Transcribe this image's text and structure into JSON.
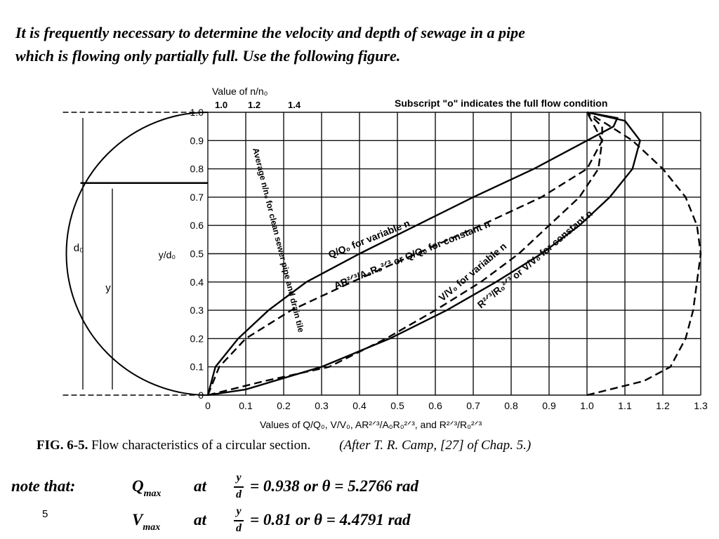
{
  "intro": {
    "line1": "It is frequently necessary to determine the velocity and depth of sewage in a pipe",
    "line2": "which is flowing only partially full.  Use the following figure."
  },
  "chart_data": {
    "type": "line",
    "top_axis_title": "Value of n/n₀",
    "top_ticks": [
      "1.0",
      "1.2",
      "1.4"
    ],
    "subscript_note": "Subscript \"o\" indicates the full flow condition",
    "ylabel": "y/d₀",
    "xlabel": "Values of Q/Q₀, V/V₀, AR²ᐟ³/A₀R₀²ᐟ³, and R²ᐟ³/R₀²ᐟ³",
    "x_ticks": [
      "0",
      "0.1",
      "0.2",
      "0.3",
      "0.4",
      "0.5",
      "0.6",
      "0.7",
      "0.8",
      "0.9",
      "1.0",
      "1.1",
      "1.2",
      "1.3"
    ],
    "y_ticks": [
      "0",
      "0.1",
      "0.2",
      "0.3",
      "0.4",
      "0.5",
      "0.6",
      "0.7",
      "0.8",
      "0.9",
      "1.0"
    ],
    "xlim": [
      0,
      1.3
    ],
    "ylim": [
      0,
      1.0
    ],
    "grid": true,
    "pipe_labels": {
      "diameter": "d₀",
      "depth": "y"
    },
    "series": [
      {
        "name": "Average n/n₀ for clean sewer pipe and drain tile",
        "style": "dashed",
        "x": [
          1.0,
          1.15,
          1.22,
          1.26,
          1.28,
          1.29,
          1.3,
          1.29,
          1.26,
          1.2,
          1.12,
          1.05,
          1.0
        ],
        "y": [
          0.0,
          0.05,
          0.1,
          0.2,
          0.3,
          0.4,
          0.5,
          0.6,
          0.7,
          0.8,
          0.9,
          0.96,
          1.0
        ]
      },
      {
        "name": "Q/Q₀ for variable n",
        "style": "dashed",
        "x": [
          0,
          0.03,
          0.1,
          0.22,
          0.38,
          0.55,
          0.72,
          0.88,
          1.0,
          1.04,
          1.04,
          1.0
        ],
        "y": [
          0,
          0.1,
          0.2,
          0.3,
          0.4,
          0.5,
          0.6,
          0.7,
          0.8,
          0.9,
          0.95,
          1.0
        ]
      },
      {
        "name": "AR²ᐟ³/A₀R₀²ᐟ³ or Q/Q₀ for constant n",
        "style": "solid",
        "x": [
          0,
          0.02,
          0.08,
          0.16,
          0.26,
          0.4,
          0.55,
          0.7,
          0.86,
          1.0,
          1.07,
          1.08,
          1.0
        ],
        "y": [
          0,
          0.1,
          0.2,
          0.3,
          0.4,
          0.5,
          0.6,
          0.7,
          0.8,
          0.9,
          0.95,
          0.98,
          1.0
        ]
      },
      {
        "name": "V/V₀ for variable n",
        "style": "dashed",
        "x": [
          0,
          0.15,
          0.32,
          0.47,
          0.6,
          0.72,
          0.82,
          0.9,
          0.98,
          1.03,
          1.04,
          1.0
        ],
        "y": [
          0,
          0.05,
          0.1,
          0.2,
          0.3,
          0.4,
          0.5,
          0.6,
          0.7,
          0.8,
          0.9,
          1.0
        ]
      },
      {
        "name": "R²ᐟ³/R₀²ᐟ³ or V/V₀ for constant n",
        "style": "solid",
        "x": [
          0,
          0.1,
          0.3,
          0.48,
          0.63,
          0.76,
          0.88,
          0.98,
          1.06,
          1.12,
          1.14,
          1.1,
          1.0
        ],
        "y": [
          0,
          0.02,
          0.1,
          0.2,
          0.3,
          0.4,
          0.5,
          0.6,
          0.7,
          0.8,
          0.9,
          0.97,
          1.0
        ]
      }
    ],
    "curve_labels": [
      "Average n/n₀ for clean sewer pipe and drain tile",
      "Q/Q₀ for variable n",
      "AR²ᐟ³/A₀R₀²ᐟ³ or Q/Q₀ for constant n",
      "V/V₀ for variable n",
      "R²ᐟ³/R₀²ᐟ³ or V/V₀ for constant n"
    ],
    "caption_fig": "FIG. 6-5.",
    "caption_text": "Flow characteristics of a circular section.",
    "caption_source": "(After T. R. Camp, [27] of Chap. 5.)"
  },
  "notes": {
    "label": "note that:",
    "q_symbol": "Q",
    "q_sub": "max",
    "v_symbol": "V",
    "v_sub": "max",
    "at": "at",
    "frac_num": "y",
    "frac_den": "d",
    "q_expr": "= 0.938  or θ = 5.2766 rad",
    "v_expr": "= 0.81    or θ = 4.4791 rad"
  },
  "page_number": "5"
}
